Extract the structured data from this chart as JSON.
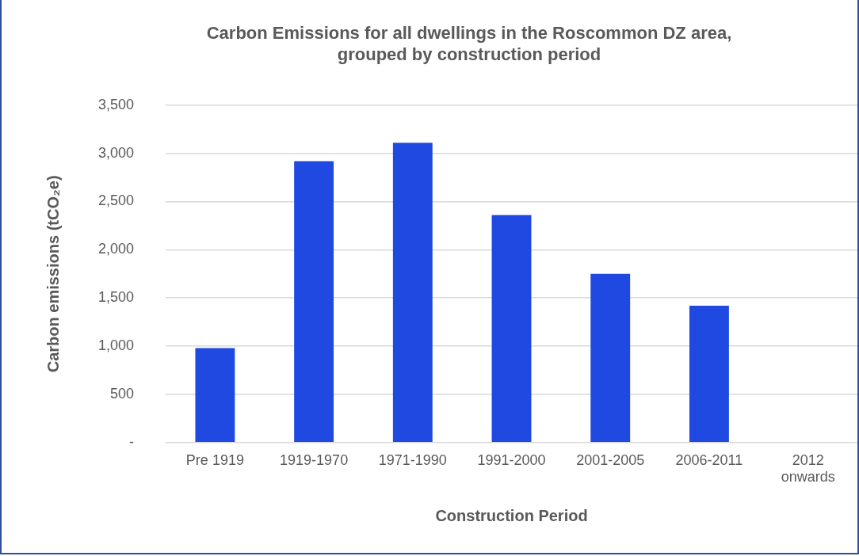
{
  "chart_data": {
    "type": "bar",
    "title": "Carbon Emissions for all dwellings in the Roscommon DZ area, grouped by construction period",
    "xlabel": "Construction Period",
    "ylabel": "Carbon emissions (tCO₂e)",
    "categories": [
      "Pre 1919",
      "1919-1970",
      "1971-1990",
      "1991-2000",
      "2001-2005",
      "2006-2011",
      "2012 onwards"
    ],
    "values": [
      980,
      2920,
      3110,
      2360,
      1750,
      1420,
      0
    ],
    "color": "#1f49e0",
    "ylim": [
      0,
      3500
    ],
    "yticks": [
      {
        "value": 0,
        "label": "-"
      },
      500,
      {
        "value": 1000,
        "label": "1,000"
      },
      {
        "value": 1500,
        "label": "1,500"
      },
      {
        "value": 2000,
        "label": "2,000"
      },
      {
        "value": 2500,
        "label": "2,500"
      },
      {
        "value": 3000,
        "label": "3,000"
      },
      {
        "value": 3500,
        "label": "3,500"
      }
    ],
    "grid": "y",
    "legend": false
  }
}
